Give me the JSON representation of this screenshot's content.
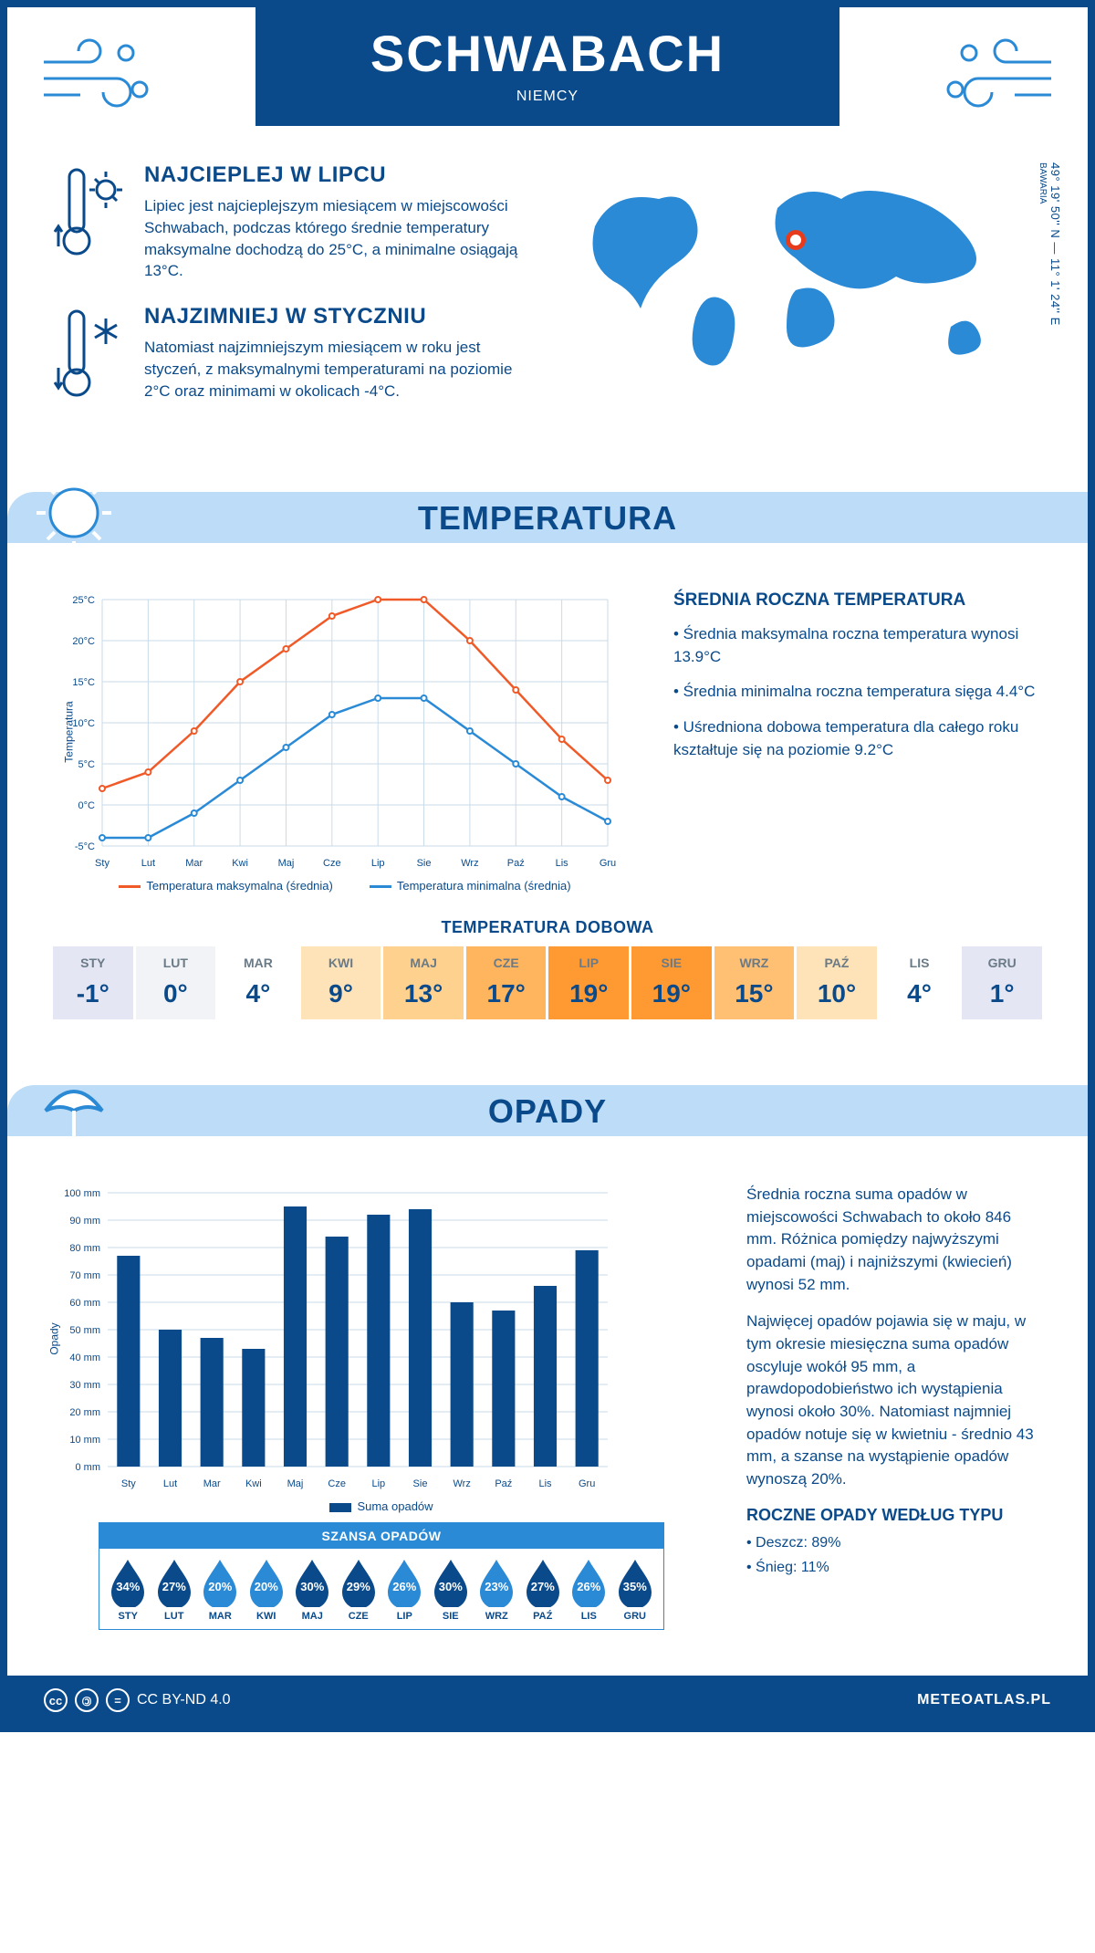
{
  "header": {
    "city": "SCHWABACH",
    "country": "NIEMCY",
    "coords": "49° 19' 50'' N — 11° 1' 24'' E",
    "region": "BAWARIA",
    "marker": {
      "left_pct": 50,
      "top_pct": 34
    }
  },
  "facts": {
    "hot": {
      "title": "NAJCIEPLEJ W LIPCU",
      "text": "Lipiec jest najcieplejszym miesiącem w miejscowości Schwabach, podczas którego średnie temperatury maksymalne dochodzą do 25°C, a minimalne osiągają 13°C."
    },
    "cold": {
      "title": "NAJZIMNIEJ W STYCZNIU",
      "text": "Natomiast najzimniejszym miesiącem w roku jest styczeń, z maksymalnymi temperaturami na poziomie 2°C oraz minimami w okolicach -4°C."
    }
  },
  "sections": {
    "temperature_title": "TEMPERATURA",
    "precip_title": "OPADY"
  },
  "temp_chart": {
    "type": "line",
    "months": [
      "Sty",
      "Lut",
      "Mar",
      "Kwi",
      "Maj",
      "Cze",
      "Lip",
      "Sie",
      "Wrz",
      "Paź",
      "Lis",
      "Gru"
    ],
    "series": {
      "max": {
        "label": "Temperatura maksymalna (średnia)",
        "color": "#f05a28",
        "values": [
          2,
          4,
          9,
          15,
          19,
          23,
          25,
          25,
          20,
          14,
          8,
          3
        ]
      },
      "min": {
        "label": "Temperatura minimalna (średnia)",
        "color": "#2a8ad6",
        "values": [
          -4,
          -4,
          -1,
          3,
          7,
          11,
          13,
          13,
          9,
          5,
          1,
          -2
        ]
      }
    },
    "ylim": [
      -5,
      25
    ],
    "ytick_step": 5,
    "yunit": "°C",
    "ylabel": "Temperatura",
    "grid_color": "#c9dbe8",
    "line_width": 2.5,
    "marker_radius": 3,
    "background": "#ffffff",
    "font_size_axis": 11
  },
  "annual_temp": {
    "title": "ŚREDNIA ROCZNA TEMPERATURA",
    "bullets": [
      "• Średnia maksymalna roczna temperatura wynosi 13.9°C",
      "• Średnia minimalna roczna temperatura sięga 4.4°C",
      "• Uśredniona dobowa temperatura dla całego roku kształtuje się na poziomie 9.2°C"
    ]
  },
  "daily_temp": {
    "title": "TEMPERATURA DOBOWA",
    "months": [
      "STY",
      "LUT",
      "MAR",
      "KWI",
      "MAJ",
      "CZE",
      "LIP",
      "SIE",
      "WRZ",
      "PAŹ",
      "LIS",
      "GRU"
    ],
    "values": [
      "-1°",
      "0°",
      "4°",
      "9°",
      "13°",
      "17°",
      "19°",
      "19°",
      "15°",
      "10°",
      "4°",
      "1°"
    ],
    "cell_colors": [
      "#e4e6f4",
      "#f1f3f6",
      "#ffffff",
      "#ffe3b8",
      "#ffd18f",
      "#ffb45e",
      "#ff9a33",
      "#ff9a33",
      "#ffc074",
      "#ffe3b8",
      "#ffffff",
      "#e4e6f4"
    ]
  },
  "precip_chart": {
    "type": "bar",
    "months": [
      "Sty",
      "Lut",
      "Mar",
      "Kwi",
      "Maj",
      "Cze",
      "Lip",
      "Sie",
      "Wrz",
      "Paź",
      "Lis",
      "Gru"
    ],
    "values": [
      77,
      50,
      47,
      43,
      95,
      84,
      92,
      94,
      60,
      57,
      66,
      79
    ],
    "label": "Suma opadów",
    "bar_color": "#0a4a8a",
    "ylim": [
      0,
      100
    ],
    "ytick_step": 10,
    "yunit": " mm",
    "ylabel": "Opady",
    "grid_color": "#c9dbe8",
    "bar_width_ratio": 0.55,
    "font_size_axis": 11
  },
  "precip_text": {
    "p1": "Średnia roczna suma opadów w miejscowości Schwabach to około 846 mm. Różnica pomiędzy najwyższymi opadami (maj) i najniższymi (kwiecień) wynosi 52 mm.",
    "p2": "Najwięcej opadów pojawia się w maju, w tym okresie miesięczna suma opadów oscyluje wokół 95 mm, a prawdopodobieństwo ich wystąpienia wynosi około 30%. Natomiast najmniej opadów notuje się w kwietniu - średnio 43 mm, a szanse na wystąpienie opadów wynoszą 20%."
  },
  "chance": {
    "title": "SZANSA OPADÓW",
    "months": [
      "STY",
      "LUT",
      "MAR",
      "KWI",
      "MAJ",
      "CZE",
      "LIP",
      "SIE",
      "WRZ",
      "PAŹ",
      "LIS",
      "GRU"
    ],
    "values": [
      34,
      27,
      20,
      20,
      30,
      29,
      26,
      30,
      23,
      27,
      26,
      35
    ],
    "color_light": "#2a8ad6",
    "color_dark": "#0a4a8a",
    "threshold_dark": 27
  },
  "precip_type": {
    "title": "ROCZNE OPADY WEDŁUG TYPU",
    "lines": [
      "• Deszcz: 89%",
      "• Śnieg: 11%"
    ]
  },
  "footer": {
    "license": "CC BY-ND 4.0",
    "site": "METEOATLAS.PL"
  },
  "colors": {
    "primary": "#0a4a8a",
    "light_band": "#bcdcf7",
    "accent": "#2a8ad6"
  }
}
